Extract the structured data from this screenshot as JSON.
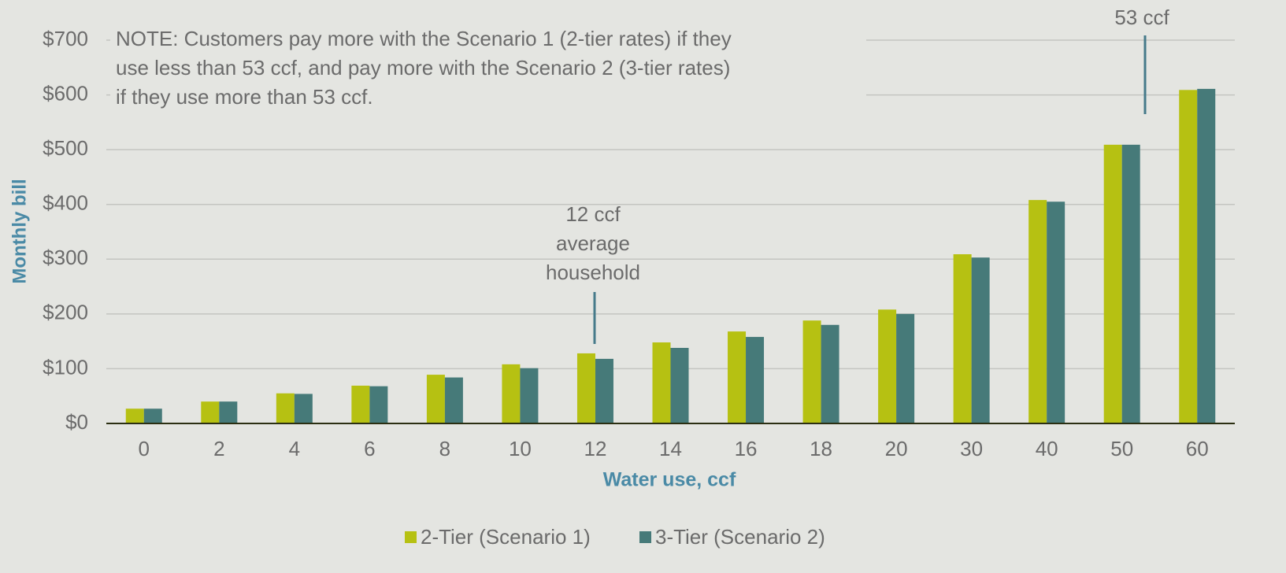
{
  "chart_data": {
    "type": "bar",
    "y_label": "Monthly bill",
    "x_label": "Water use, ccf",
    "categories": [
      "0",
      "2",
      "4",
      "6",
      "8",
      "10",
      "12",
      "14",
      "16",
      "18",
      "20",
      "30",
      "40",
      "50",
      "60"
    ],
    "series": [
      {
        "name": "2-Tier (Scenario 1)",
        "color": "#b6c112",
        "values": [
          27,
          40,
          55,
          69,
          89,
          108,
          128,
          148,
          168,
          188,
          208,
          309,
          408,
          509,
          609
        ]
      },
      {
        "name": "3-Tier (Scenario 2)",
        "color": "#467a79",
        "values": [
          27,
          40,
          54,
          68,
          84,
          101,
          118,
          138,
          158,
          180,
          200,
          303,
          405,
          509,
          611
        ]
      }
    ],
    "ylim": [
      0,
      700
    ],
    "yticks": [
      {
        "value": 0,
        "label": "$0"
      },
      {
        "value": 100,
        "label": "$100"
      },
      {
        "value": 200,
        "label": "$200"
      },
      {
        "value": 300,
        "label": "$300"
      },
      {
        "value": 400,
        "label": "$400"
      },
      {
        "value": 500,
        "label": "$500"
      },
      {
        "value": 600,
        "label": "$600"
      },
      {
        "value": 700,
        "label": "$700"
      }
    ],
    "grid": true,
    "note": [
      "NOTE: Customers pay more with the Scenario 1 (2-tier rates) if they",
      "use less than 53 ccf, and pay more with the Scenario 2 (3-tier rates)",
      "if they use more than 53 ccf."
    ],
    "annotations": [
      {
        "lines": [
          "12 ccf",
          "average",
          "household"
        ]
      },
      {
        "lines": [
          "53 ccf"
        ]
      }
    ],
    "legend": "bottom"
  }
}
